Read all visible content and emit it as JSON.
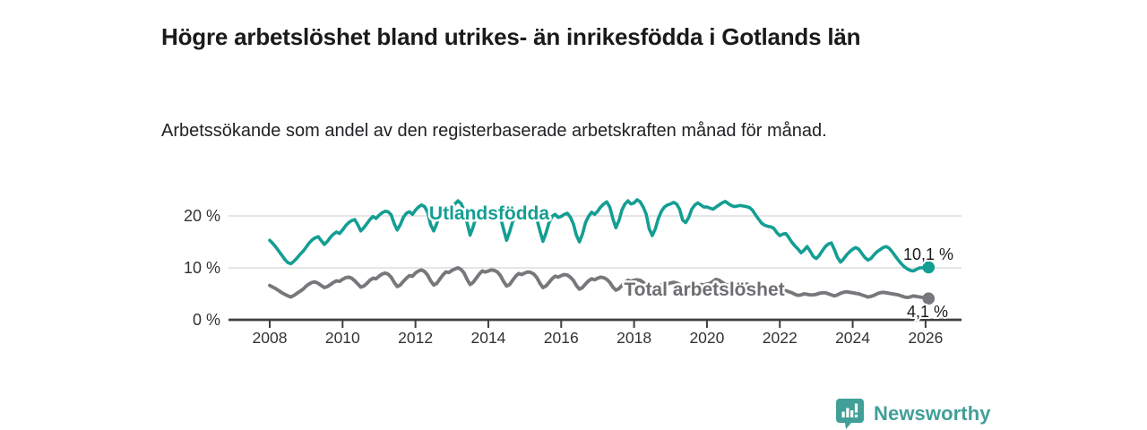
{
  "header": {
    "title": "Högre arbetslöshet bland utrikes- än inrikesfödda i Gotlands län",
    "subtitle": "Arbetssökande som andel av den registerbaserade arbetskraften månad för månad."
  },
  "footer": {
    "brand": "Newsworthy",
    "icon": "newsworthy-chart-pin-icon"
  },
  "colors": {
    "foreign_born_line": "#149e93",
    "total_line": "#78787c",
    "total_label": "#6e6e72",
    "value_label_text": "#1a1a1a",
    "axis_line": "#3f3f3f",
    "gridline": "#d8d8d8",
    "tick_text": "#333337",
    "brand_teal": "#419f98"
  },
  "chart_data": {
    "type": "line",
    "title": "Högre arbetslöshet bland utrikes- än inrikesfödda i Gotlands län",
    "subtitle": "Arbetssökande som andel av den registerbaserade arbetskraften månad för månad.",
    "unit": "%",
    "frequency": "monthly",
    "x_start": "2008-01",
    "x_end": "2026-02",
    "x_tick_labels": [
      "2008",
      "2010",
      "2012",
      "2014",
      "2016",
      "2018",
      "2020",
      "2022",
      "2024",
      "2026"
    ],
    "x_tick_years": [
      2008,
      2010,
      2012,
      2014,
      2016,
      2018,
      2020,
      2022,
      2024,
      2026
    ],
    "y_tick_labels": [
      "0 %",
      "10 %",
      "20 %"
    ],
    "y_tick_values": [
      0,
      10,
      20
    ],
    "ylim": [
      0,
      25
    ],
    "grid": "horizontal-only",
    "legend": "inline-labels-on-lines",
    "series": [
      {
        "name": "Utlandsfödda",
        "color": "#149e93",
        "end_value": 10.1,
        "end_label": "10,1 %",
        "values": [
          15.3,
          14.7,
          14.0,
          13.2,
          12.4,
          11.6,
          11.0,
          10.8,
          11.3,
          11.9,
          12.6,
          13.2,
          14.0,
          14.8,
          15.4,
          15.8,
          16.0,
          15.2,
          14.5,
          15.1,
          15.9,
          16.5,
          16.9,
          16.6,
          17.3,
          18.1,
          18.7,
          19.1,
          19.3,
          18.3,
          17.1,
          17.7,
          18.5,
          19.3,
          19.9,
          19.5,
          20.1,
          20.6,
          20.9,
          20.8,
          20.2,
          18.5,
          17.3,
          18.3,
          19.7,
          20.5,
          20.8,
          20.3,
          21.1,
          21.7,
          22.1,
          21.8,
          20.7,
          18.3,
          17.1,
          18.5,
          20.3,
          21.3,
          21.6,
          20.7,
          21.5,
          22.3,
          22.9,
          22.4,
          21.1,
          18.7,
          16.3,
          17.9,
          19.9,
          21.1,
          21.5,
          20.5,
          20.7,
          21.1,
          21.3,
          20.8,
          19.7,
          17.5,
          15.3,
          16.9,
          18.9,
          20.1,
          20.7,
          19.9,
          20.3,
          20.9,
          21.1,
          20.6,
          19.3,
          17.1,
          15.1,
          16.7,
          18.7,
          19.9,
          20.3,
          19.7,
          19.9,
          20.3,
          20.5,
          19.8,
          18.5,
          16.3,
          15.0,
          16.5,
          18.7,
          19.9,
          20.7,
          20.3,
          20.9,
          21.7,
          22.3,
          22.7,
          21.7,
          19.5,
          17.7,
          19.1,
          21.1,
          22.3,
          22.9,
          22.3,
          22.5,
          23.1,
          22.7,
          21.7,
          20.3,
          17.5,
          16.2,
          17.5,
          19.5,
          20.9,
          21.7,
          22.1,
          22.3,
          22.6,
          22.3,
          21.3,
          19.2,
          18.7,
          19.7,
          21.3,
          22.1,
          22.5,
          22.1,
          21.7,
          21.7,
          21.5,
          21.3,
          21.7,
          22.1,
          22.5,
          22.8,
          22.4,
          22.0,
          21.8,
          21.9,
          22.0,
          21.9,
          21.8,
          21.6,
          21.1,
          20.2,
          19.4,
          18.6,
          18.2,
          18.0,
          17.9,
          17.6,
          16.8,
          16.2,
          16.5,
          16.6,
          15.8,
          14.9,
          14.2,
          13.6,
          12.9,
          13.4,
          14.1,
          13.2,
          12.2,
          11.8,
          12.4,
          13.3,
          14.1,
          14.6,
          14.8,
          13.5,
          12.0,
          11.1,
          11.7,
          12.5,
          13.1,
          13.6,
          13.9,
          13.6,
          12.8,
          12.0,
          11.5,
          11.8,
          12.5,
          13.1,
          13.5,
          13.9,
          14.1,
          13.8,
          13.1,
          12.3,
          11.5,
          10.8,
          10.2,
          9.8,
          9.5,
          9.4,
          9.7,
          10.0,
          10.0,
          10.0,
          10.1
        ]
      },
      {
        "name": "Total arbetslöshet",
        "color": "#78787c",
        "end_value": 4.1,
        "end_label": "4,1 %",
        "values": [
          6.6,
          6.3,
          6.0,
          5.6,
          5.2,
          4.9,
          4.6,
          4.4,
          4.7,
          5.1,
          5.5,
          5.9,
          6.5,
          6.9,
          7.2,
          7.3,
          7.0,
          6.6,
          6.2,
          6.4,
          6.8,
          7.2,
          7.5,
          7.4,
          7.8,
          8.1,
          8.2,
          8.0,
          7.5,
          6.9,
          6.3,
          6.5,
          7.0,
          7.6,
          8.0,
          7.9,
          8.4,
          8.8,
          9.0,
          8.8,
          8.2,
          7.2,
          6.4,
          6.7,
          7.4,
          8.0,
          8.5,
          8.4,
          9.0,
          9.4,
          9.6,
          9.3,
          8.6,
          7.5,
          6.7,
          7.0,
          7.8,
          8.6,
          9.2,
          9.1,
          9.5,
          9.8,
          10.0,
          9.7,
          9.0,
          7.8,
          6.8,
          7.2,
          8.0,
          8.8,
          9.4,
          9.2,
          9.4,
          9.6,
          9.5,
          9.2,
          8.5,
          7.4,
          6.5,
          6.8,
          7.6,
          8.4,
          8.9,
          8.7,
          9.0,
          9.2,
          9.1,
          8.8,
          8.1,
          7.0,
          6.2,
          6.5,
          7.2,
          7.9,
          8.4,
          8.2,
          8.5,
          8.7,
          8.6,
          8.2,
          7.6,
          6.6,
          5.9,
          6.2,
          6.9,
          7.5,
          7.9,
          7.7,
          8.0,
          8.2,
          8.1,
          7.8,
          7.2,
          6.3,
          5.7,
          6.0,
          6.6,
          7.2,
          7.6,
          7.4,
          7.6,
          7.7,
          7.6,
          7.2,
          6.6,
          5.8,
          5.3,
          5.6,
          6.2,
          6.7,
          7.0,
          6.9,
          7.1,
          7.2,
          7.1,
          6.8,
          6.3,
          5.6,
          5.2,
          5.5,
          6.0,
          6.5,
          6.8,
          6.7,
          6.9,
          7.0,
          7.4,
          7.8,
          7.6,
          7.2,
          6.8,
          6.7,
          6.6,
          6.5,
          6.5,
          6.6,
          6.8,
          6.9,
          6.7,
          6.4,
          6.1,
          5.8,
          5.6,
          5.5,
          5.6,
          5.7,
          5.6,
          5.6,
          5.6,
          5.7,
          5.6,
          5.4,
          5.2,
          4.9,
          4.7,
          4.8,
          5.0,
          4.9,
          4.8,
          4.8,
          4.9,
          5.1,
          5.2,
          5.2,
          5.0,
          4.8,
          4.6,
          4.8,
          5.1,
          5.3,
          5.4,
          5.3,
          5.2,
          5.1,
          5.0,
          4.8,
          4.6,
          4.4,
          4.5,
          4.7,
          5.0,
          5.2,
          5.3,
          5.2,
          5.1,
          5.0,
          4.9,
          4.8,
          4.6,
          4.4,
          4.3,
          4.4,
          4.6,
          4.5,
          4.4,
          4.3,
          4.2,
          4.1
        ]
      }
    ]
  }
}
